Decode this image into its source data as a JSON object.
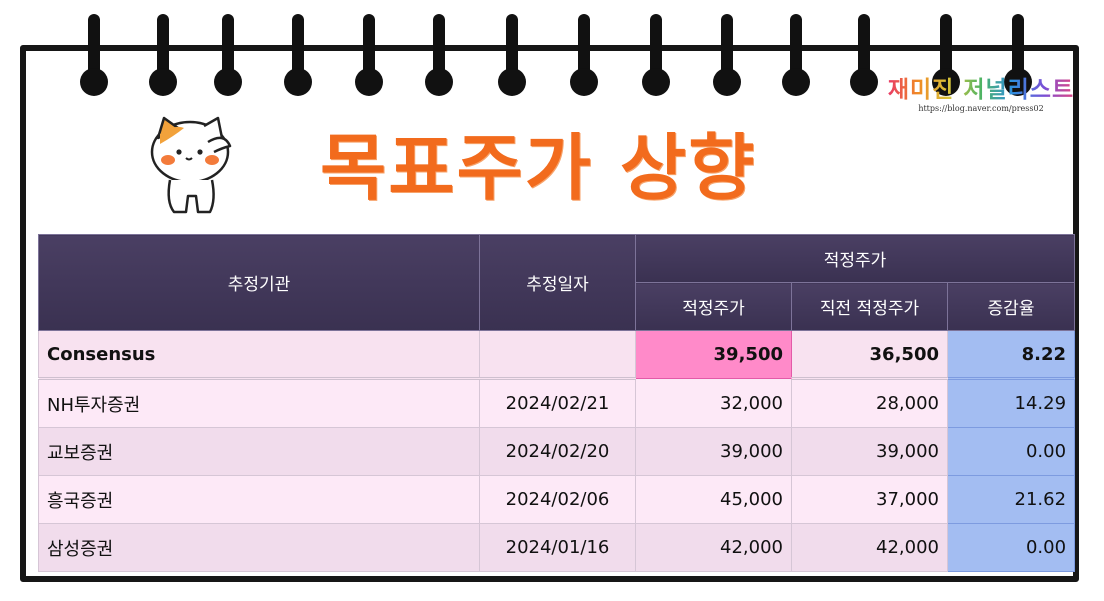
{
  "brand": {
    "title": "재미진 저널리스트",
    "url": "https://blog.naver.com/press02"
  },
  "page_title": "목표주가 상향",
  "mascot": {
    "icon": "cat-saluting-icon"
  },
  "colors": {
    "title": "#f26b1d",
    "header_bg": "#3f3658",
    "consensus_highlight": "#ff8ac9",
    "rate_column": "#a3bdf2"
  },
  "table": {
    "headers": {
      "agency": "추정기관",
      "date": "추정일자",
      "group": "적정주가",
      "target": "적정주가",
      "prev_target": "직전 적정주가",
      "change": "증감율"
    },
    "consensus": {
      "agency": "Consensus",
      "date": "",
      "target": "39,500",
      "prev_target": "36,500",
      "change": "8.22"
    },
    "rows": [
      {
        "agency": "NH투자증권",
        "date": "2024/02/21",
        "target": "32,000",
        "prev_target": "28,000",
        "change": "14.29"
      },
      {
        "agency": "교보증권",
        "date": "2024/02/20",
        "target": "39,000",
        "prev_target": "39,000",
        "change": "0.00"
      },
      {
        "agency": "흥국증권",
        "date": "2024/02/06",
        "target": "45,000",
        "prev_target": "37,000",
        "change": "21.62"
      },
      {
        "agency": "삼성증권",
        "date": "2024/01/16",
        "target": "42,000",
        "prev_target": "42,000",
        "change": "0.00"
      }
    ]
  }
}
